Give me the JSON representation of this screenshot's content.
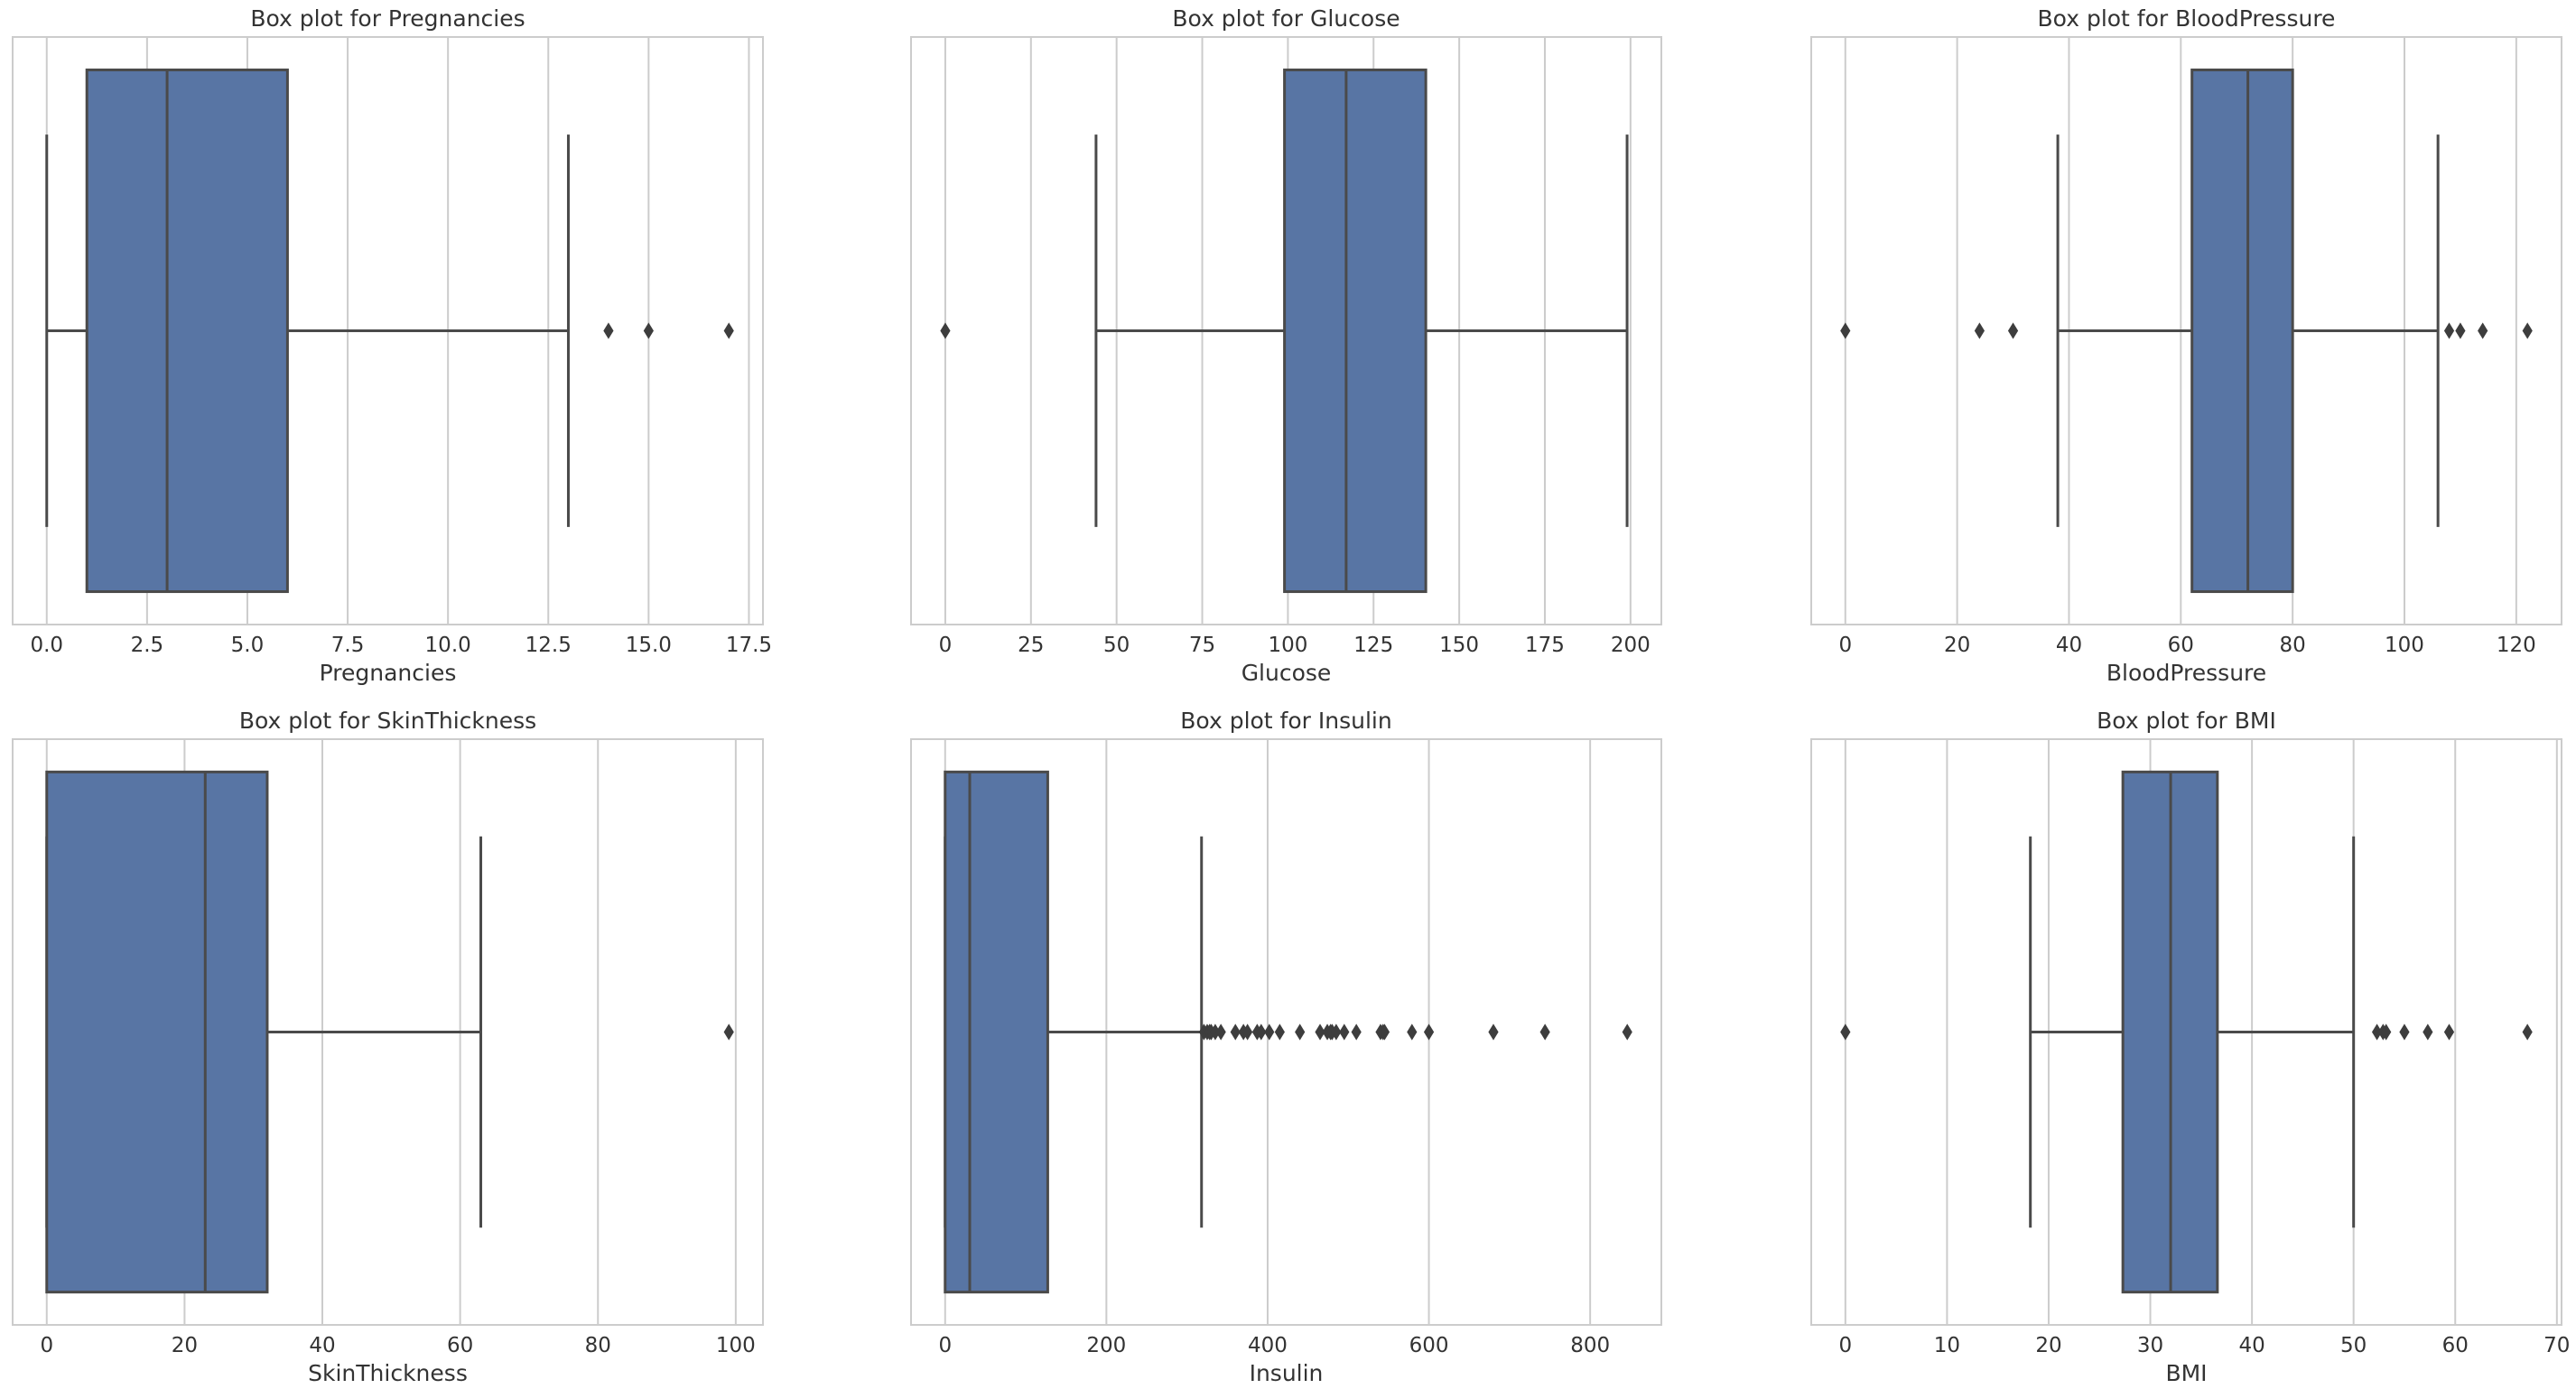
{
  "chart_data": [
    {
      "type": "boxplot",
      "title": "Box plot for Pregnancies",
      "xlabel": "Pregnancies",
      "xlim": [
        -0.85,
        17.85
      ],
      "ticks": [
        0,
        2.5,
        5,
        7.5,
        10,
        12.5,
        15,
        17.5
      ],
      "tick_labels": [
        "0.0",
        "2.5",
        "5.0",
        "7.5",
        "10.0",
        "12.5",
        "15.0",
        "17.5"
      ],
      "grid": true,
      "whisker_low": 0,
      "q1": 1,
      "median": 3,
      "q3": 6,
      "whisker_high": 13,
      "outliers": [
        14,
        15,
        17
      ],
      "color": "#5875a4"
    },
    {
      "type": "boxplot",
      "title": "Box plot for Glucose",
      "xlabel": "Glucose",
      "xlim": [
        -10,
        209
      ],
      "ticks": [
        0,
        25,
        50,
        75,
        100,
        125,
        150,
        175,
        200
      ],
      "tick_labels": [
        "0",
        "25",
        "50",
        "75",
        "100",
        "125",
        "150",
        "175",
        "200"
      ],
      "grid": true,
      "whisker_low": 44,
      "q1": 99,
      "median": 117,
      "q3": 140.25,
      "whisker_high": 199,
      "outliers": [
        0
      ],
      "color": "#5875a4"
    },
    {
      "type": "boxplot",
      "title": "Box plot for BloodPressure",
      "xlabel": "BloodPressure",
      "xlim": [
        -6.1,
        128.1
      ],
      "ticks": [
        0,
        20,
        40,
        60,
        80,
        100,
        120
      ],
      "tick_labels": [
        "0",
        "20",
        "40",
        "60",
        "80",
        "100",
        "120"
      ],
      "grid": true,
      "whisker_low": 38,
      "q1": 62,
      "median": 72,
      "q3": 80,
      "whisker_high": 106,
      "outliers": [
        0,
        24,
        30,
        108,
        110,
        114,
        122
      ],
      "color": "#5875a4"
    },
    {
      "type": "boxplot",
      "title": "Box plot for SkinThickness",
      "xlabel": "SkinThickness",
      "xlim": [
        -4.95,
        103.95
      ],
      "ticks": [
        0,
        20,
        40,
        60,
        80,
        100
      ],
      "tick_labels": [
        "0",
        "20",
        "40",
        "60",
        "80",
        "100"
      ],
      "grid": true,
      "whisker_low": 0,
      "q1": 0,
      "median": 23,
      "q3": 32,
      "whisker_high": 63,
      "outliers": [
        99
      ],
      "color": "#5875a4"
    },
    {
      "type": "boxplot",
      "title": "Box plot for Insulin",
      "xlabel": "Insulin",
      "xlim": [
        -42.3,
        888.3
      ],
      "ticks": [
        0,
        200,
        400,
        600,
        800
      ],
      "tick_labels": [
        "0",
        "200",
        "400",
        "600",
        "800"
      ],
      "grid": true,
      "whisker_low": 0,
      "q1": 0,
      "median": 30.5,
      "q3": 127.25,
      "whisker_high": 318,
      "outliers": [
        321,
        325,
        328,
        330,
        335,
        342,
        360,
        370,
        375,
        387,
        392,
        402,
        415,
        440,
        465,
        474,
        478,
        480,
        485,
        495,
        510,
        540,
        543,
        545,
        579,
        600,
        680,
        744,
        846
      ],
      "color": "#5875a4"
    },
    {
      "type": "boxplot",
      "title": "Box plot for BMI",
      "xlabel": "BMI",
      "xlim": [
        -3.36,
        70.46
      ],
      "ticks": [
        0,
        10,
        20,
        30,
        40,
        50,
        60,
        70
      ],
      "tick_labels": [
        "0",
        "10",
        "20",
        "30",
        "40",
        "50",
        "60",
        "70"
      ],
      "grid": true,
      "whisker_low": 18.2,
      "q1": 27.3,
      "median": 32,
      "q3": 36.6,
      "whisker_high": 50,
      "outliers": [
        0,
        52.3,
        52.9,
        53.2,
        55,
        57.3,
        59.4,
        67.1
      ],
      "color": "#5875a4"
    }
  ]
}
